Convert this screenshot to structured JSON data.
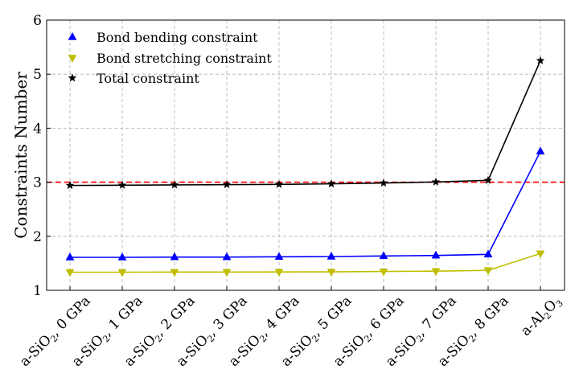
{
  "chart_data": {
    "type": "line",
    "title": "",
    "xlabel": "",
    "ylabel": "Constraints Number",
    "ylim": [
      1,
      6
    ],
    "yticks": [
      1,
      2,
      3,
      4,
      5,
      6
    ],
    "grid": true,
    "legend_position": "top-left",
    "categories": [
      {
        "base": "a-SiO",
        "sub": "2",
        "suffix": ", 0 GPa"
      },
      {
        "base": "a-SiO",
        "sub": "2",
        "suffix": ", 1 GPa"
      },
      {
        "base": "a-SiO",
        "sub": "2",
        "suffix": ", 2 GPa"
      },
      {
        "base": "a-SiO",
        "sub": "2",
        "suffix": ", 3 GPa"
      },
      {
        "base": "a-SiO",
        "sub": "2",
        "suffix": ", 4 GPa"
      },
      {
        "base": "a-SiO",
        "sub": "2",
        "suffix": ", 5 GPa"
      },
      {
        "base": "a-SiO",
        "sub": "2",
        "suffix": ", 6 GPa"
      },
      {
        "base": "a-SiO",
        "sub": "2",
        "suffix": ", 7 GPa"
      },
      {
        "base": "a-SiO",
        "sub": "2",
        "suffix": ", 8 GPa"
      },
      {
        "base": "a-Al",
        "sub": "2",
        "mid": "O",
        "sub2": "3",
        "suffix": ""
      }
    ],
    "reference_line": {
      "y": 3.0,
      "color": "#ff0000",
      "style": "dashed"
    },
    "series": [
      {
        "name": "Bond bending constraint",
        "color": "#0000ff",
        "marker": "triangle-up",
        "values": [
          1.61,
          1.61,
          1.615,
          1.615,
          1.62,
          1.625,
          1.635,
          1.645,
          1.665,
          3.57
        ]
      },
      {
        "name": "Bond stretching constraint",
        "color": "#bfbf00",
        "marker": "triangle-down",
        "values": [
          1.335,
          1.335,
          1.337,
          1.338,
          1.34,
          1.342,
          1.348,
          1.355,
          1.37,
          1.68
        ]
      },
      {
        "name": "Total constraint",
        "color": "#000000",
        "marker": "star",
        "values": [
          2.94,
          2.945,
          2.95,
          2.955,
          2.96,
          2.97,
          2.985,
          3.005,
          3.035,
          5.25
        ]
      }
    ]
  }
}
